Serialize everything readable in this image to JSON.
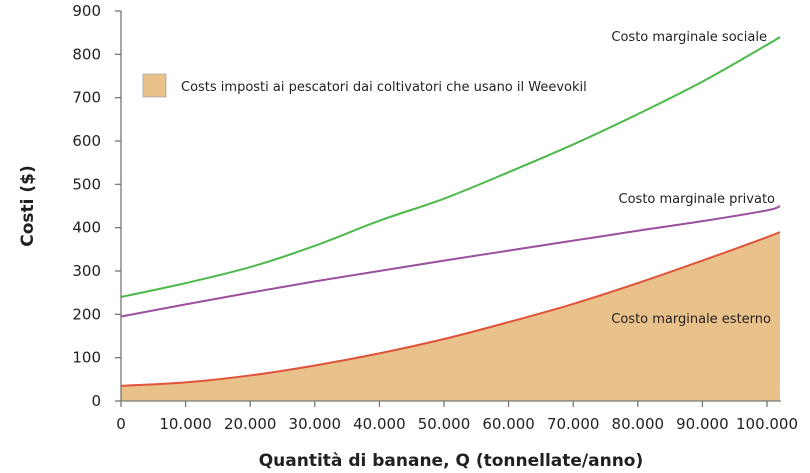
{
  "chart_data": {
    "type": "area",
    "title": "",
    "xlabel": "Quantità di banane, Q (tonnellate/anno)",
    "ylabel": "Costi ($)",
    "xlim": [
      0,
      102000
    ],
    "ylim": [
      0,
      900
    ],
    "grid": false,
    "x_ticks": [
      0,
      10000,
      20000,
      30000,
      40000,
      50000,
      60000,
      70000,
      80000,
      90000,
      100000
    ],
    "x_tick_labels": [
      "0",
      "10.000",
      "20.000",
      "30.000",
      "40.000",
      "50.000",
      "60.000",
      "70.000",
      "80.000",
      "90.000",
      "100.000"
    ],
    "y_ticks": [
      0,
      100,
      200,
      300,
      400,
      500,
      600,
      700,
      800,
      900
    ],
    "y_tick_labels": [
      "0",
      "100",
      "200",
      "300",
      "400",
      "500",
      "600",
      "700",
      "800",
      "900"
    ],
    "x": [
      0,
      10000,
      20000,
      30000,
      40000,
      50000,
      60000,
      70000,
      80000,
      90000,
      100000,
      102000
    ],
    "series": [
      {
        "name": "Costo marginale sociale",
        "color": "#4cb84a",
        "values": [
          240,
          272,
          309,
          358,
          416,
          467,
          528,
          592,
          662,
          737,
          822,
          840
        ]
      },
      {
        "name": "Costo marginale privato",
        "color": "#9b4f9e",
        "values": [
          195,
          223,
          250,
          276,
          300,
          324,
          347,
          370,
          393,
          415,
          440,
          450
        ]
      },
      {
        "name": "Costo marginale esterno",
        "color": "#e0533a",
        "values": [
          35,
          43,
          59,
          82,
          110,
          143,
          182,
          224,
          272,
          324,
          378,
          390
        ],
        "fill": "#e8c28a"
      }
    ],
    "legend": {
      "label": "Costs imposti ai pescatori dai coltivatori che usano il Weevokil",
      "color": "#e8c28a",
      "placement": "top-left"
    }
  }
}
